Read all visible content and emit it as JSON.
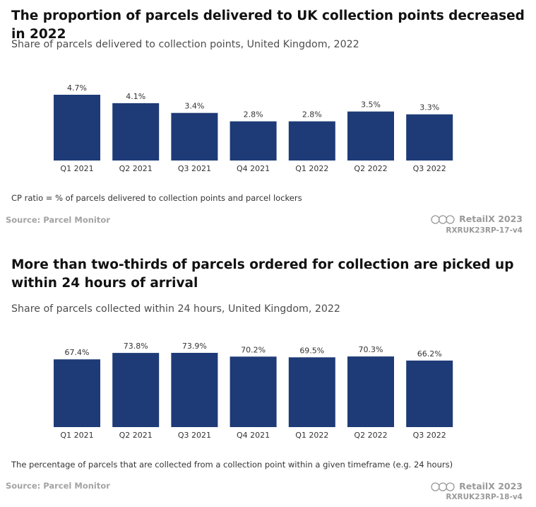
{
  "chart_data": [
    {
      "type": "bar",
      "title": "The proportion of parcels delivered to UK collection points decreased in 2022",
      "subtitle": "Share of parcels delivered to collection points, United Kingdom, 2022",
      "categories": [
        "Q1 2021",
        "Q2 2021",
        "Q3 2021",
        "Q4 2021",
        "Q1 2022",
        "Q2 2022",
        "Q3 2022"
      ],
      "values": [
        4.7,
        4.1,
        3.4,
        2.8,
        2.8,
        3.5,
        3.3
      ],
      "value_labels": [
        "4.7%",
        "4.1%",
        "3.4%",
        "2.8%",
        "2.8%",
        "3.5%",
        "3.3%"
      ],
      "xlabel": "",
      "ylabel": "",
      "ylim": [
        0,
        4.7
      ],
      "grid": false,
      "legend": "none",
      "bar_color": "#1e3b77",
      "note": "CP ratio = % of parcels delivered to collection points and parcel lockers",
      "source": "Source: Parcel Monitor",
      "brand": "RetailX 2023",
      "code": "RXRUK23RP-17-v4"
    },
    {
      "type": "bar",
      "title": "More than two-thirds of parcels ordered for collection are picked up within 24 hours of arrival",
      "subtitle": "Share of parcels collected within 24 hours, United Kingdom, 2022",
      "categories": [
        "Q1 2021",
        "Q2 2021",
        "Q3 2021",
        "Q4 2021",
        "Q1 2022",
        "Q2 2022",
        "Q3 2022"
      ],
      "values": [
        67.4,
        73.8,
        73.9,
        70.2,
        69.5,
        70.3,
        66.2
      ],
      "value_labels": [
        "67.4%",
        "73.8%",
        "73.9%",
        "70.2%",
        "69.5%",
        "70.3%",
        "66.2%"
      ],
      "xlabel": "",
      "ylabel": "",
      "ylim": [
        0,
        73.9
      ],
      "grid": false,
      "legend": "none",
      "bar_color": "#1e3b77",
      "note": "The percentage of parcels that are collected from a collection point within a given timeframe (e.g. 24 hours)",
      "source": "Source: Parcel Monitor",
      "brand": "RetailX 2023",
      "code": "RXRUK23RP-18-v4"
    }
  ]
}
